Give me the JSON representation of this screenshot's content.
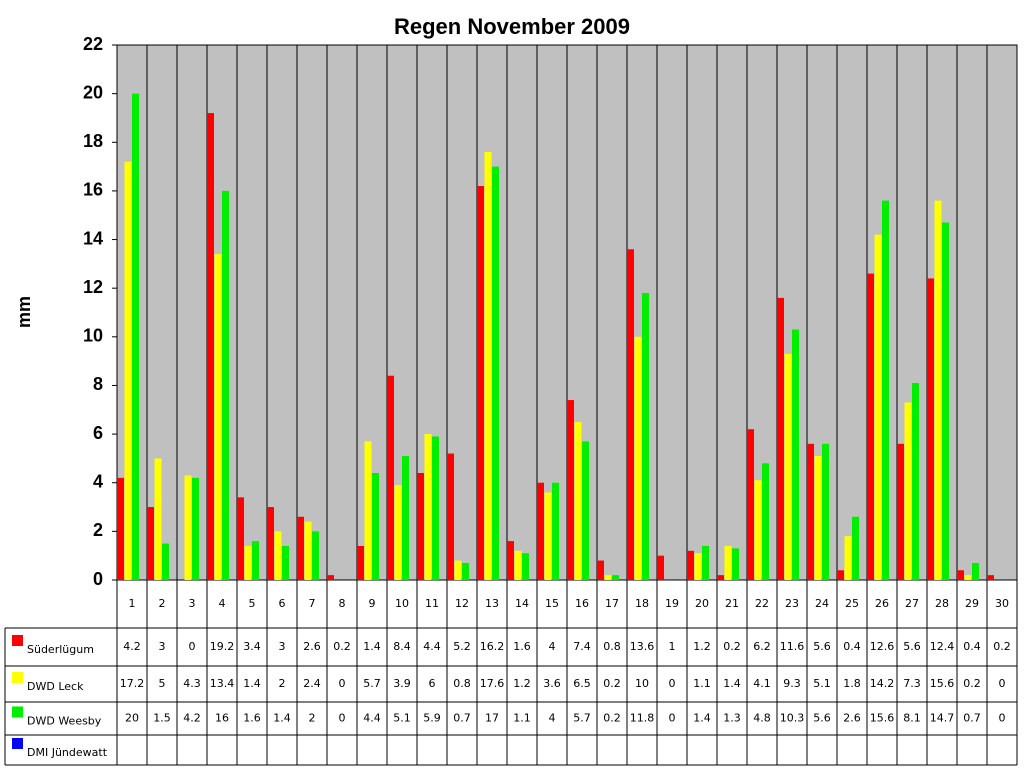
{
  "chart_data": {
    "type": "bar",
    "title": "Regen November 2009",
    "y_label": "mm",
    "categories": [
      "1",
      "2",
      "3",
      "4",
      "5",
      "6",
      "7",
      "8",
      "9",
      "10",
      "11",
      "12",
      "13",
      "14",
      "15",
      "16",
      "17",
      "18",
      "19",
      "20",
      "21",
      "22",
      "23",
      "24",
      "25",
      "26",
      "27",
      "28",
      "29",
      "30"
    ],
    "series": [
      {
        "name": "Süderlügum",
        "color": "#ff0000",
        "values": [
          4.2,
          3,
          0,
          19.2,
          3.4,
          3,
          2.6,
          0.2,
          1.4,
          8.4,
          4.4,
          5.2,
          16.2,
          1.6,
          4,
          7.4,
          0.8,
          13.6,
          1,
          1.2,
          0.2,
          6.2,
          11.6,
          5.6,
          0.4,
          12.6,
          5.6,
          12.4,
          0.4,
          0.2
        ]
      },
      {
        "name": "DWD Leck",
        "color": "#ffff00",
        "values": [
          17.2,
          5,
          4.3,
          13.4,
          1.4,
          2,
          2.4,
          0,
          5.7,
          3.9,
          6,
          0.8,
          17.6,
          1.2,
          3.6,
          6.5,
          0.2,
          10,
          0,
          1.1,
          1.4,
          4.1,
          9.3,
          5.1,
          1.8,
          14.2,
          7.3,
          15.6,
          0.2,
          0
        ]
      },
      {
        "name": "DWD Weesby",
        "color": "#00ee00",
        "values": [
          20,
          1.5,
          4.2,
          16,
          1.6,
          1.4,
          2,
          0,
          4.4,
          5.1,
          5.9,
          0.7,
          17,
          1.1,
          4,
          5.7,
          0.2,
          11.8,
          0,
          1.4,
          1.3,
          4.8,
          10.3,
          5.6,
          2.6,
          15.6,
          8.1,
          14.7,
          0.7,
          0
        ]
      },
      {
        "name": "DMI Jündewatt",
        "color": "#0000ff",
        "values": [
          null,
          null,
          null,
          null,
          null,
          null,
          null,
          null,
          null,
          null,
          null,
          null,
          null,
          null,
          null,
          null,
          null,
          null,
          null,
          null,
          null,
          null,
          null,
          null,
          null,
          null,
          null,
          null,
          null,
          null
        ]
      }
    ],
    "ylim": [
      0,
      22
    ],
    "yticks": [
      0,
      2,
      4,
      6,
      8,
      10,
      12,
      14,
      16,
      18,
      20,
      22
    ],
    "plot_background": "#c0c0c0"
  }
}
